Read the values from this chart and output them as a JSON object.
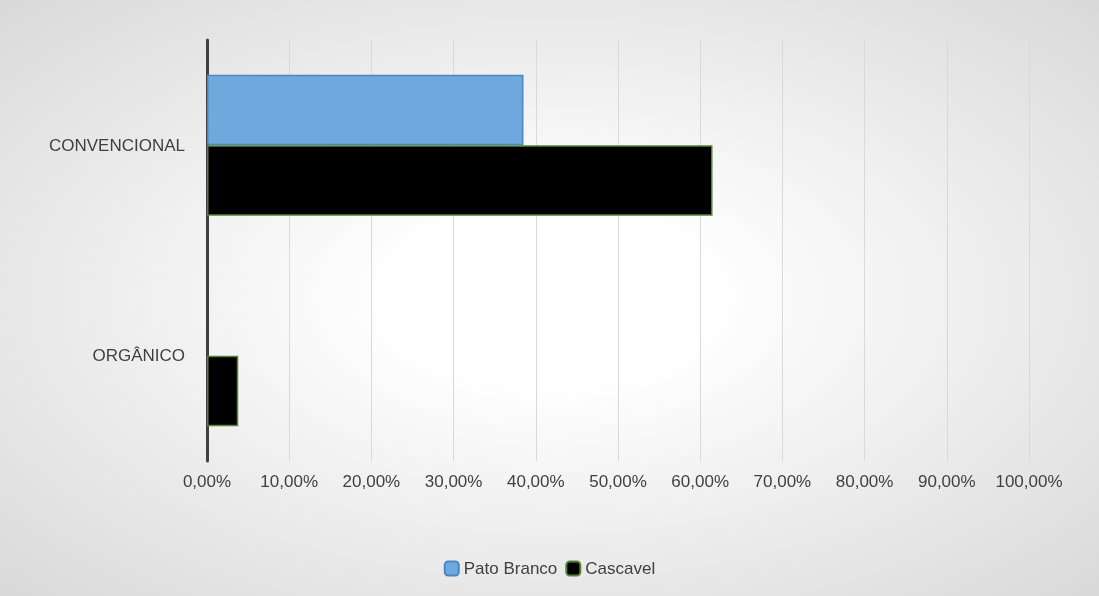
{
  "chart_data": {
    "type": "bar",
    "orientation": "horizontal",
    "categories": [
      "CONVENCIONAL",
      "ORGÂNICO"
    ],
    "series": [
      {
        "name": "Pato Branco",
        "color": "#6fa8dc",
        "values": [
          38.5,
          null
        ]
      },
      {
        "name": "Cascavel",
        "color": "#000000",
        "values": [
          61.5,
          3.8
        ]
      }
    ],
    "xlim": [
      0,
      100
    ],
    "xticks": [
      {
        "value": 0,
        "label": "0,00%"
      },
      {
        "value": 10,
        "label": "10,00%"
      },
      {
        "value": 20,
        "label": "20,00%"
      },
      {
        "value": 30,
        "label": "30,00%"
      },
      {
        "value": 40,
        "label": "40,00%"
      },
      {
        "value": 50,
        "label": "50,00%"
      },
      {
        "value": 60,
        "label": "60,00%"
      },
      {
        "value": 70,
        "label": "70,00%"
      },
      {
        "value": 80,
        "label": "80,00%"
      },
      {
        "value": 90,
        "label": "90,00%"
      },
      {
        "value": 100,
        "label": "100,00%"
      }
    ],
    "grid": "x",
    "legend": "bottom"
  }
}
